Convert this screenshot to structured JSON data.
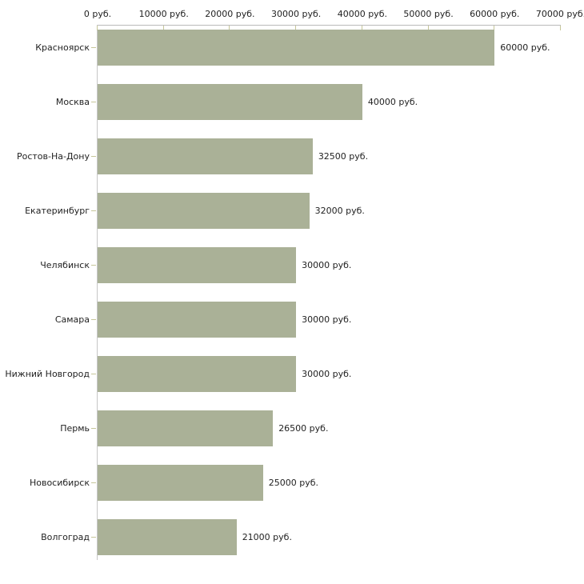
{
  "chart_data": {
    "type": "bar",
    "orientation": "horizontal",
    "title": "",
    "unit": "руб.",
    "categories": [
      "Красноярск",
      "Москва",
      "Ростов-На-Дону",
      "Екатеринбург",
      "Челябинск",
      "Самара",
      "Нижний Новгород",
      "Пермь",
      "Новосибирск",
      "Волгоград"
    ],
    "values": [
      60000,
      40000,
      32500,
      32000,
      30000,
      30000,
      30000,
      26500,
      25000,
      21000
    ],
    "value_labels": [
      "60000 руб.",
      "40000 руб.",
      "32500 руб.",
      "32000 руб.",
      "30000 руб.",
      "30000 руб.",
      "30000 руб.",
      "26500 руб.",
      "25000 руб.",
      "21000 руб."
    ],
    "x_axis": {
      "position": "top",
      "min": 0,
      "max": 70000,
      "tick_step": 10000,
      "tick_labels": [
        "0 руб.",
        "10000 руб.",
        "20000 руб.",
        "30000 руб.",
        "40000 руб.",
        "50000 руб.",
        "60000 руб.",
        "70000 руб."
      ]
    },
    "ylim": [
      0,
      70000
    ],
    "grid": false,
    "legend": false,
    "colors": {
      "bar": "#aab197",
      "tick": "#c6c69a",
      "axis": "#b9b9b9",
      "axis_light": "#c6c6c6",
      "text": "#222222",
      "background": "#ffffff"
    }
  }
}
